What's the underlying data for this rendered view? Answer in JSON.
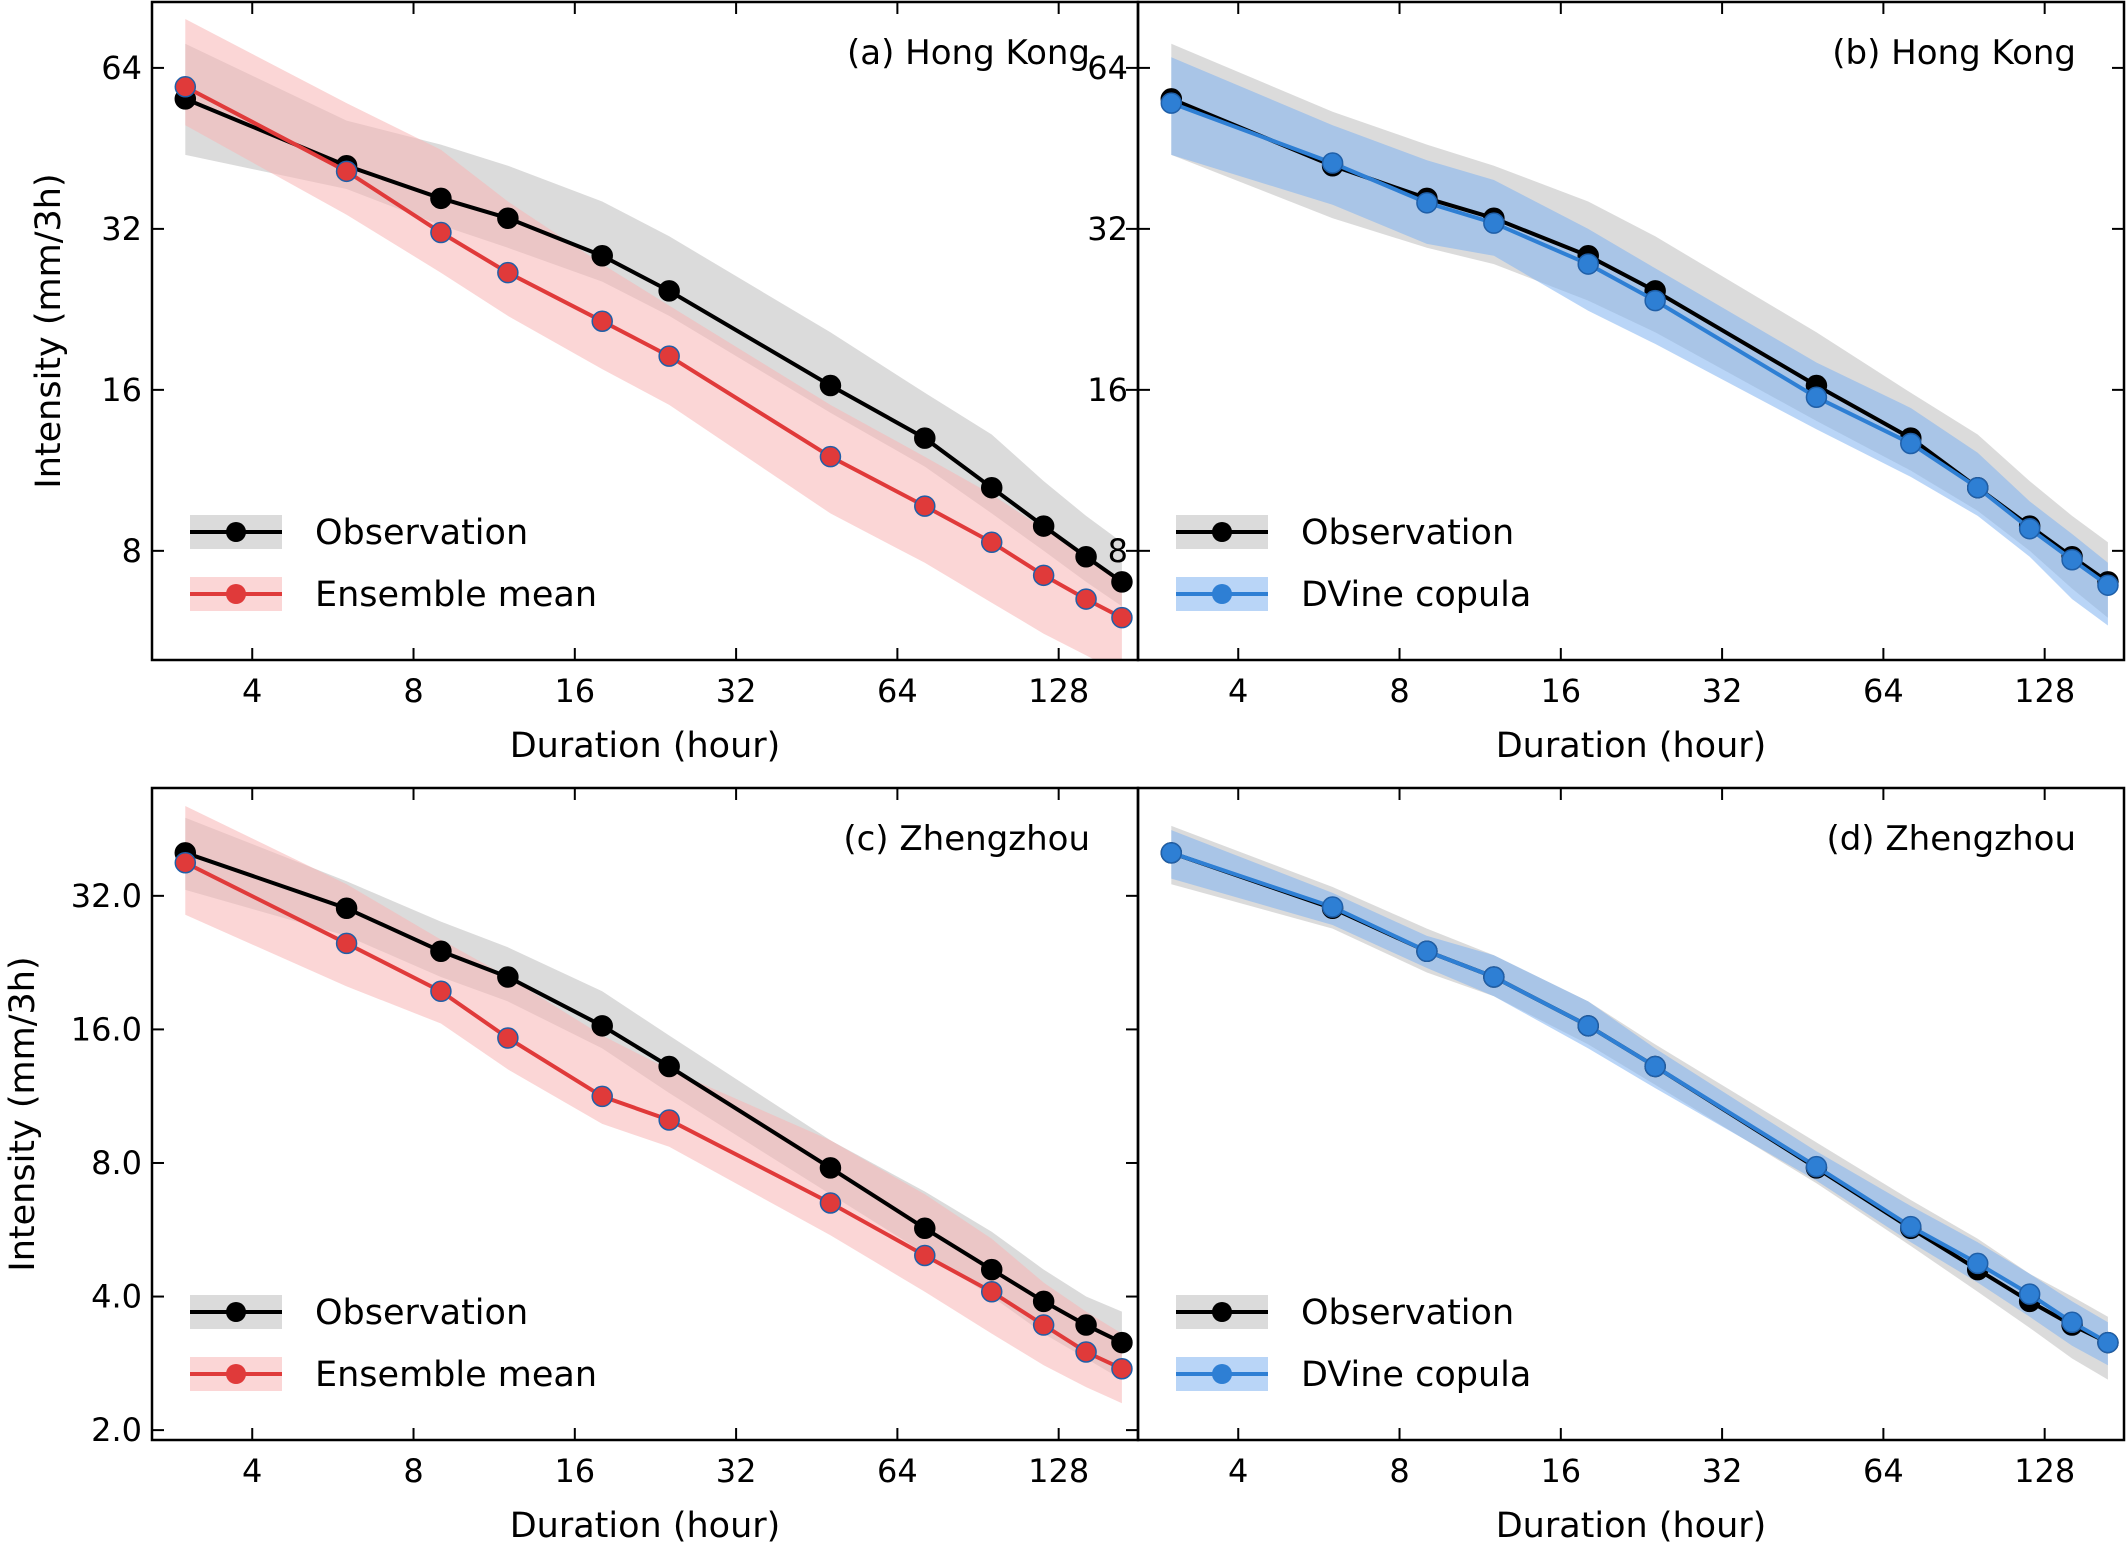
{
  "chart_data": [
    {
      "type": "line",
      "title": "(a) Hong Kong",
      "xlabel": "Duration (hour)",
      "ylabel": "Intensity (mm/3h)",
      "xscale": "log2",
      "yscale": "log2",
      "xlim": [
        2.6,
        180
      ],
      "ylim": [
        5.0,
        85
      ],
      "xticks": [
        "4",
        "8",
        "16",
        "32",
        "64",
        "128"
      ],
      "yticks": [
        "8",
        "16",
        "32",
        "64"
      ],
      "x": [
        3,
        6,
        9,
        12,
        18,
        24,
        48,
        72,
        96,
        120,
        144,
        168
      ],
      "legend_position": "lower-left",
      "series": [
        {
          "name": "Observation",
          "color": "#000000",
          "band_color": "#bdbdbd",
          "values": [
            56,
            42,
            36.5,
            33.5,
            28.5,
            24.5,
            16.3,
            13.0,
            10.5,
            8.9,
            7.8,
            7.0
          ],
          "lower": [
            44,
            38,
            32.5,
            29.5,
            25.5,
            22,
            14.5,
            11.5,
            9.4,
            8.0,
            7.0,
            6.3
          ],
          "upper": [
            71,
            51,
            46,
            42,
            36,
            31,
            20.5,
            15.8,
            13.2,
            10.8,
            9.3,
            8.3
          ]
        },
        {
          "name": "Ensemble mean",
          "color": "#e03a3a",
          "band_color": "#f8b4b4",
          "values": [
            59,
            41,
            31.5,
            26.5,
            21.5,
            18.5,
            12.0,
            9.7,
            8.3,
            7.2,
            6.5,
            6.0
          ],
          "lower": [
            50,
            34,
            26.5,
            22,
            17.5,
            15.0,
            9.4,
            7.6,
            6.4,
            5.6,
            5.1,
            4.7
          ],
          "upper": [
            79,
            55,
            45,
            36,
            27.5,
            23,
            15.0,
            12.0,
            10.2,
            8.8,
            7.8,
            7.1
          ]
        }
      ]
    },
    {
      "type": "line",
      "title": "(b) Hong Kong",
      "xlabel": "Duration (hour)",
      "ylabel": "",
      "xscale": "log2",
      "yscale": "log2",
      "xlim": [
        2.6,
        180
      ],
      "ylim": [
        5.0,
        85
      ],
      "xticks": [
        "4",
        "8",
        "16",
        "32",
        "64",
        "128"
      ],
      "yticks": [
        "8",
        "16",
        "32",
        "64"
      ],
      "x": [
        3,
        6,
        9,
        12,
        18,
        24,
        48,
        72,
        96,
        120,
        144,
        168
      ],
      "legend_position": "lower-left",
      "series": [
        {
          "name": "Observation",
          "color": "#000000",
          "band_color": "#bdbdbd",
          "values": [
            56,
            42,
            36.5,
            33.5,
            28.5,
            24.5,
            16.3,
            13.0,
            10.5,
            8.9,
            7.8,
            7.0
          ],
          "lower": [
            44,
            33.5,
            29.5,
            27.5,
            23.5,
            20.5,
            14.0,
            11.3,
            9.5,
            8.0,
            6.8,
            6.0
          ],
          "upper": [
            71,
            53,
            46,
            42,
            36,
            31,
            20.5,
            15.8,
            13.2,
            10.8,
            9.3,
            8.3
          ]
        },
        {
          "name": "DVine copula",
          "color": "#2e7fd4",
          "band_color": "#7fb3f0",
          "values": [
            55,
            42.5,
            35.8,
            32.8,
            27.5,
            23.5,
            15.5,
            12.7,
            10.5,
            8.8,
            7.7,
            6.9
          ],
          "lower": [
            44,
            35.5,
            30.0,
            28.5,
            22.5,
            19.5,
            13.5,
            11.0,
            9.3,
            7.8,
            6.5,
            5.8
          ],
          "upper": [
            67,
            50,
            43,
            39.5,
            32.0,
            27,
            18.0,
            14.8,
            12.2,
            9.9,
            8.6,
            7.6
          ]
        }
      ]
    },
    {
      "type": "line",
      "title": "(c) Zhengzhou",
      "xlabel": "Duration (hour)",
      "ylabel": "Intensity (mm/3h)",
      "xscale": "log2",
      "yscale": "log2",
      "xlim": [
        2.6,
        180
      ],
      "ylim": [
        1.9,
        56
      ],
      "xticks": [
        "4",
        "8",
        "16",
        "32",
        "64",
        "128"
      ],
      "yticks": [
        "2.0",
        "4.0",
        "8.0",
        "16.0",
        "32.0"
      ],
      "x": [
        3,
        6,
        9,
        12,
        18,
        24,
        48,
        72,
        96,
        120,
        144,
        168
      ],
      "legend_position": "lower-left",
      "series": [
        {
          "name": "Observation",
          "color": "#000000",
          "band_color": "#bdbdbd",
          "values": [
            40,
            30,
            24,
            21,
            16.3,
            13.2,
            7.8,
            5.7,
            4.6,
            3.9,
            3.45,
            3.15
          ],
          "lower": [
            33,
            26,
            21,
            18.5,
            14.5,
            11.5,
            6.8,
            5.0,
            4.0,
            3.3,
            2.9,
            2.6
          ],
          "upper": [
            48,
            34.5,
            28,
            24.5,
            19.5,
            15.5,
            9.0,
            6.9,
            5.6,
            4.6,
            4.0,
            3.7
          ]
        },
        {
          "name": "Ensemble mean",
          "color": "#e03a3a",
          "band_color": "#f8b4b4",
          "values": [
            38,
            25,
            19.5,
            15.3,
            11.3,
            10.0,
            6.5,
            4.95,
            4.1,
            3.45,
            3.0,
            2.75
          ],
          "lower": [
            29,
            20,
            16.5,
            13,
            9.8,
            8.7,
            5.5,
            4.1,
            3.3,
            2.8,
            2.5,
            2.3
          ],
          "upper": [
            51,
            34,
            25.5,
            21,
            15.5,
            13,
            9.0,
            6.8,
            5.4,
            4.3,
            3.7,
            3.3
          ]
        }
      ]
    },
    {
      "type": "line",
      "title": "(d) Zhengzhou",
      "xlabel": "Duration (hour)",
      "ylabel": "",
      "xscale": "log2",
      "yscale": "log2",
      "xlim": [
        2.6,
        180
      ],
      "ylim": [
        1.9,
        56
      ],
      "xticks": [
        "4",
        "8",
        "16",
        "32",
        "64",
        "128"
      ],
      "yticks": [],
      "x": [
        3,
        6,
        9,
        12,
        18,
        24,
        48,
        72,
        96,
        120,
        144,
        168
      ],
      "legend_position": "lower-left",
      "series": [
        {
          "name": "Observation",
          "color": "#000000",
          "band_color": "#bdbdbd",
          "values": [
            40,
            30,
            24,
            21,
            16.3,
            13.2,
            7.8,
            5.7,
            4.6,
            3.9,
            3.45,
            3.15
          ],
          "lower": [
            34,
            27,
            21.5,
            19,
            14.8,
            12,
            7.2,
            5.2,
            4.1,
            3.4,
            2.9,
            2.6
          ],
          "upper": [
            46,
            33.5,
            27,
            23.5,
            18.5,
            14.8,
            8.9,
            6.6,
            5.4,
            4.5,
            4.0,
            3.6
          ]
        },
        {
          "name": "DVine copula",
          "color": "#2e7fd4",
          "band_color": "#7fb3f0",
          "values": [
            40,
            30.2,
            24,
            21,
            16.3,
            13.2,
            7.85,
            5.75,
            4.75,
            4.05,
            3.5,
            3.15
          ],
          "lower": [
            35,
            27.5,
            22,
            19,
            14.5,
            11.8,
            7.3,
            5.3,
            4.3,
            3.6,
            3.1,
            2.8
          ],
          "upper": [
            45,
            32.5,
            26,
            23.5,
            18.5,
            14.5,
            8.5,
            6.4,
            5.3,
            4.5,
            3.9,
            3.5
          ]
        }
      ]
    }
  ]
}
